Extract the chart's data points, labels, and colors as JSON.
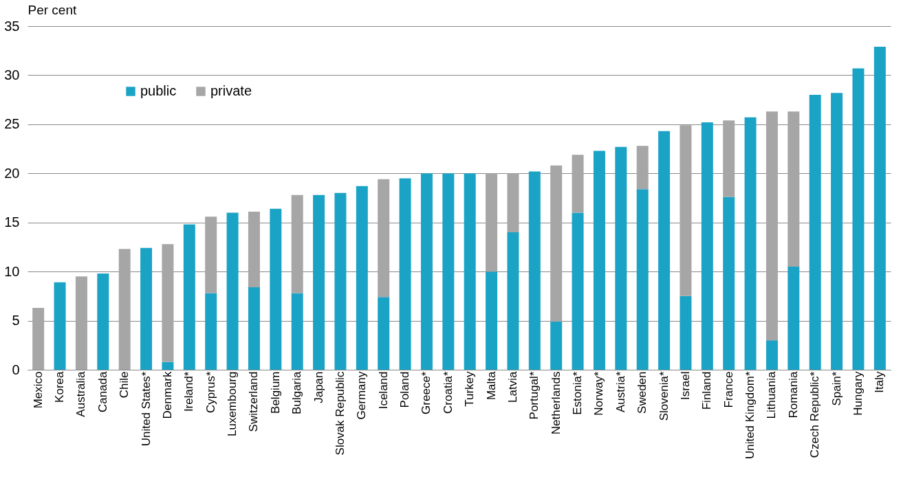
{
  "chart_data": {
    "type": "bar",
    "stacked": true,
    "ylabel": "Per cent",
    "categories": [
      "Mexico",
      "Korea",
      "Australia",
      "Canada",
      "Chile",
      "United States*",
      "Denmark",
      "Ireland*",
      "Cyprus*",
      "Luxembourg",
      "Switzerland",
      "Belgium",
      "Bulgaria",
      "Japan",
      "Slovak Republic",
      "Germany",
      "Iceland",
      "Poland",
      "Greece*",
      "Croatia*",
      "Turkey",
      "Malta",
      "Latvia",
      "Portugal*",
      "Netherlands",
      "Estonia*",
      "Norway*",
      "Austria*",
      "Sweden",
      "Slovenia*",
      "Israel",
      "Finland",
      "France",
      "United Kingdom*",
      "Lithuania",
      "Romania",
      "Czech Republic*",
      "Spain*",
      "Hungary",
      "Italy"
    ],
    "series": [
      {
        "name": "public",
        "color": "#1ba3c6",
        "values": [
          null,
          8.9,
          null,
          9.8,
          null,
          12.4,
          0.8,
          14.8,
          7.8,
          16.0,
          8.4,
          16.4,
          7.8,
          17.8,
          18.0,
          18.7,
          7.4,
          19.5,
          20.0,
          20.0,
          20.0,
          10.0,
          14.0,
          20.2,
          4.9,
          16.0,
          22.3,
          22.7,
          18.4,
          24.3,
          7.5,
          25.2,
          17.6,
          25.7,
          3.0,
          10.5,
          28.0,
          28.2,
          30.7,
          32.9
        ]
      },
      {
        "name": "private",
        "color": "#a6a6a6",
        "values": [
          6.3,
          null,
          9.5,
          null,
          12.3,
          null,
          12.0,
          null,
          7.8,
          null,
          7.7,
          null,
          10.0,
          null,
          null,
          null,
          12.0,
          null,
          null,
          null,
          null,
          10.0,
          6.0,
          null,
          15.9,
          5.9,
          null,
          null,
          4.4,
          null,
          17.4,
          null,
          7.8,
          null,
          23.3,
          15.8,
          null,
          null,
          null,
          null
        ]
      }
    ],
    "ylim": [
      0,
      35
    ],
    "yticks": [
      0,
      5,
      10,
      15,
      20,
      25,
      30,
      35
    ],
    "grid": "y",
    "legend": "top left"
  }
}
